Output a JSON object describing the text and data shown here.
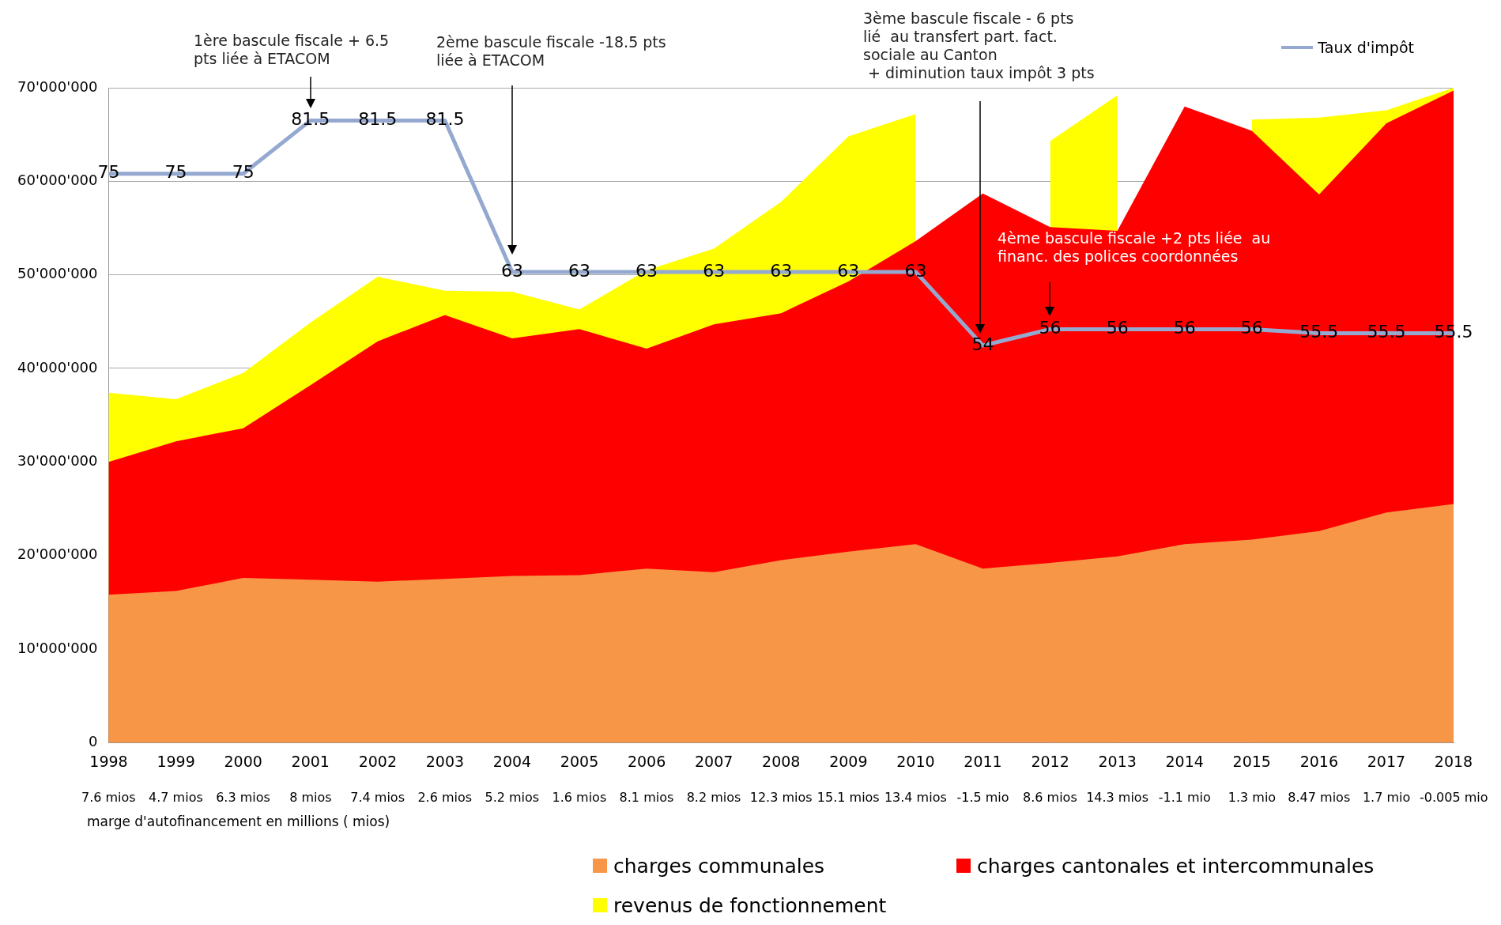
{
  "chart_data": {
    "type": "area",
    "categories": [
      "1998",
      "1999",
      "2000",
      "2001",
      "2002",
      "2003",
      "2004",
      "2005",
      "2006",
      "2007",
      "2008",
      "2009",
      "2010",
      "2011",
      "2012",
      "2013",
      "2014",
      "2015",
      "2016",
      "2017",
      "2018"
    ],
    "series": [
      {
        "name": "charges communales",
        "color": "#f79646",
        "values": [
          15800000,
          16200000,
          17600000,
          17400000,
          17200000,
          17500000,
          17800000,
          17900000,
          18600000,
          18200000,
          19500000,
          20400000,
          21200000,
          18600000,
          19200000,
          19900000,
          21200000,
          21700000,
          22600000,
          24600000,
          25500000
        ]
      },
      {
        "name": "charges cantonales et intercommunales",
        "color": "#ff0000",
        "values": [
          30000000,
          32200000,
          33600000,
          38200000,
          42900000,
          45700000,
          43200000,
          44200000,
          42100000,
          44700000,
          45900000,
          49300000,
          53600000,
          58700000,
          55100000,
          54700000,
          68000000,
          65400000,
          58600000,
          66200000,
          69700000
        ]
      },
      {
        "name": "revenus de fonctionnement",
        "color": "#ffff00",
        "values": [
          37400000,
          36700000,
          39500000,
          44900000,
          49800000,
          48300000,
          48200000,
          46300000,
          50500000,
          52800000,
          57800000,
          64800000,
          67200000,
          null,
          64300000,
          69200000,
          null,
          66600000,
          66800000,
          67600000,
          70000000
        ]
      },
      {
        "name": "Taux d'impôt",
        "type": "line",
        "axis": "y2",
        "color": "#95a9d0",
        "values": [
          75,
          75,
          75,
          81.5,
          81.5,
          81.5,
          63,
          63,
          63,
          63,
          63,
          63,
          63,
          54,
          56,
          56,
          56,
          56,
          55.5,
          55.5,
          55.5
        ],
        "value_labels": [
          "75",
          "75",
          "75",
          "81.5",
          "81.5",
          "81.5",
          "63",
          "63",
          "63",
          "63",
          "63",
          "63",
          "63",
          "54",
          "56",
          "56",
          "56",
          "56",
          "55.5",
          "55.5",
          "55.5"
        ]
      }
    ],
    "ylim": [
      0,
      70000000
    ],
    "yticks": [
      0,
      {
        "value": 10000000,
        "label": "10'000'000"
      },
      {
        "value": 20000000,
        "label": "20'000'000"
      },
      {
        "value": 30000000,
        "label": "30'000'000"
      },
      {
        "value": 40000000,
        "label": "40'000'000"
      },
      {
        "value": 50000000,
        "label": "50'000'000"
      },
      {
        "value": 60000000,
        "label": "60'000'000"
      },
      {
        "value": 70000000,
        "label": "70'000'000"
      }
    ],
    "y2lim": [
      5.5,
      85.5
    ],
    "grid": "y",
    "legend": "bottom",
    "marker": "none",
    "annotations": [
      "1ère bascule fiscale + 6.5\npts liée à ETACOM",
      "2ème bascule fiscale -18.5 pts\nliée à ETACOM",
      "3ème bascule fiscale - 6 pts\nlié  au transfert part. fact.\nsociale au Canton\n + diminution taux impôt 3 pts",
      "4ème bascule fiscale +2 pts liée  au\nfinanc. des polices coordonnées",
      "7.6 mios",
      "4.7 mios",
      "6.3 mios",
      "8 mios",
      "7.4 mios",
      "2.6 mios",
      "5.2 mios",
      "1.6 mios",
      "8.1 mios",
      "8.2 mios",
      "12.3 mios",
      "15.1 mios",
      "13.4 mios",
      "-1.5 mio",
      "8.6 mios",
      "14.3 mios",
      "-1.1 mio",
      "1.3 mio",
      "8.47 mios",
      "1.7 mio",
      "-0.005 mio",
      "marge d'autofinancement en millions ( mios)"
    ]
  }
}
